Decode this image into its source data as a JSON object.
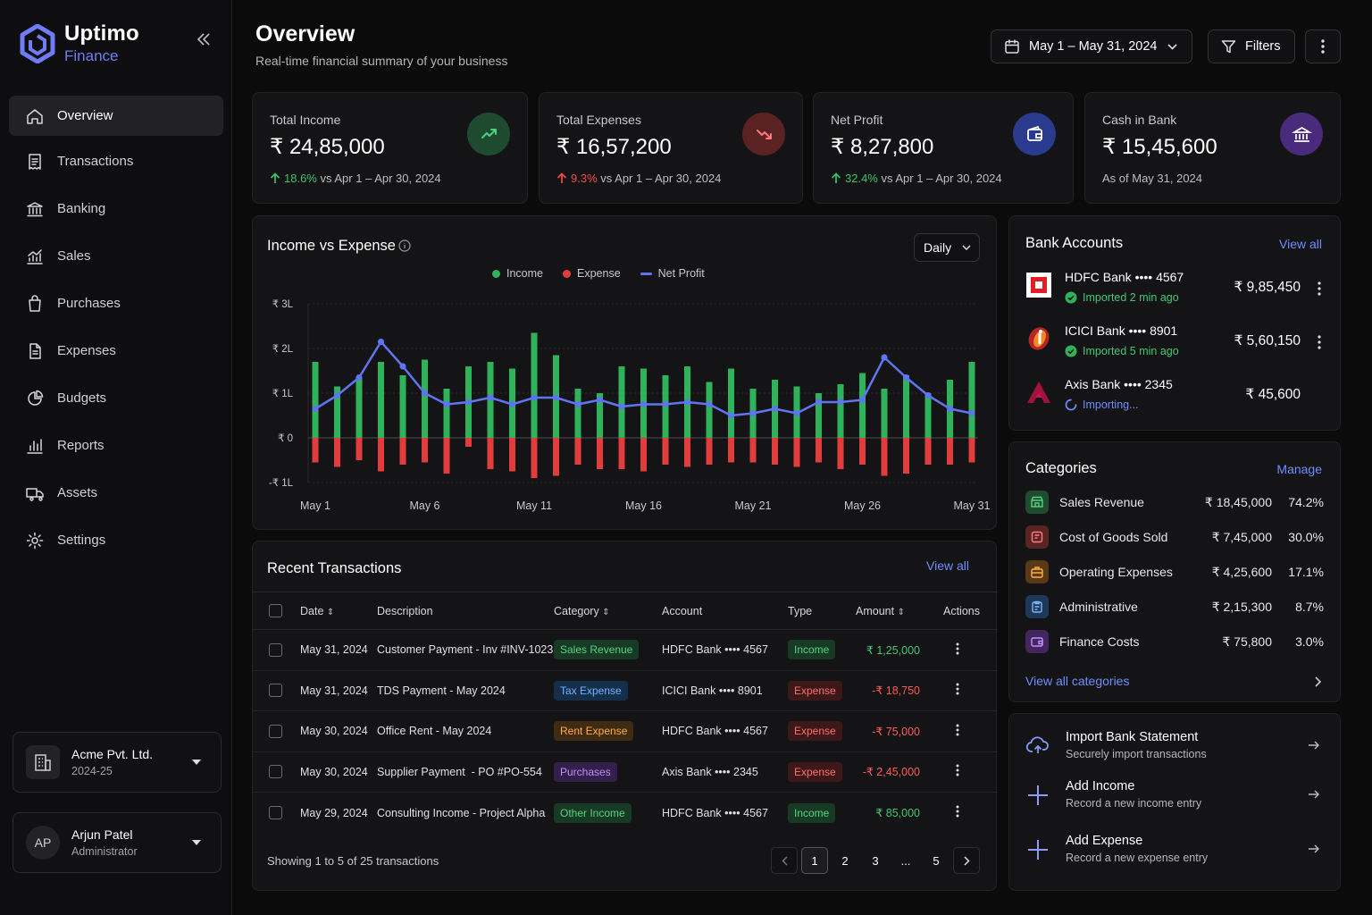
{
  "brand": {
    "name": "Uptimo",
    "sub": "Finance"
  },
  "nav": [
    {
      "label": "Overview",
      "icon": "home-icon",
      "active": true
    },
    {
      "label": "Transactions",
      "icon": "receipt-icon"
    },
    {
      "label": "Banking",
      "icon": "bank-icon"
    },
    {
      "label": "Sales",
      "icon": "sales-chart-icon"
    },
    {
      "label": "Purchases",
      "icon": "purchases-bag-icon"
    },
    {
      "label": "Expenses",
      "icon": "expenses-doc-icon"
    },
    {
      "label": "Budgets",
      "icon": "pie-icon"
    },
    {
      "label": "Reports",
      "icon": "bar-chart-icon"
    },
    {
      "label": "Assets",
      "icon": "truck-icon"
    },
    {
      "label": "Settings",
      "icon": "gear-icon"
    }
  ],
  "org": {
    "name": "Acme Pvt. Ltd.",
    "year": "2024-25"
  },
  "user": {
    "initials": "AP",
    "name": "Arjun Patel",
    "role": "Administrator"
  },
  "header": {
    "title": "Overview",
    "subtitle": "Real-time financial summary of your business",
    "date_range": "May 1 – May 31, 2024",
    "filters": "Filters"
  },
  "kpis": [
    {
      "label": "Total Income",
      "value": "₹ 24,85,000",
      "delta": "18.6%",
      "delta_suffix": " vs Apr 1 – Apr 30, 2024",
      "trend": "up",
      "color": "#1e4a30",
      "icon_color": "#4ed07e"
    },
    {
      "label": "Total Expenses",
      "value": "₹ 16,57,200",
      "delta": "9.3%",
      "delta_suffix": " vs Apr 1 – Apr 30, 2024",
      "trend": "down",
      "color": "#5a2222",
      "icon_color": "#ff7a7a"
    },
    {
      "label": "Net Profit",
      "value": "₹ 8,27,800",
      "delta": "32.4%",
      "delta_suffix": " vs Apr 1 – Apr 30, 2024",
      "trend": "up",
      "color": "#2a3a8c",
      "icon_color": "#ffffff"
    },
    {
      "label": "Cash in Bank",
      "value": "₹ 15,45,600",
      "delta": "",
      "delta_suffix": "As of May 31, 2024",
      "trend": "none",
      "color": "#4a2a7a",
      "icon_color": "#ffffff"
    }
  ],
  "chart": {
    "title": "Income vs Expense",
    "period": "Daily",
    "legend": [
      "Income",
      "Expense",
      "Net Profit"
    ],
    "colors": {
      "income": "#2fb35a",
      "expense": "#e23c3c",
      "net": "#5f74ef"
    }
  },
  "chart_data": {
    "type": "bar",
    "categories": [
      "May 1",
      "May 2",
      "May 3",
      "May 4",
      "May 5",
      "May 6",
      "May 7",
      "May 8",
      "May 9",
      "May 10",
      "May 11",
      "May 12",
      "May 13",
      "May 14",
      "May 15",
      "May 16",
      "May 17",
      "May 18",
      "May 19",
      "May 20",
      "May 21",
      "May 22",
      "May 23",
      "May 24",
      "May 25",
      "May 26",
      "May 27",
      "May 28",
      "May 29",
      "May 30",
      "May 31"
    ],
    "x_tick_labels": [
      "May 1",
      "May 6",
      "May 11",
      "May 16",
      "May 21",
      "May 26",
      "May 31"
    ],
    "series": [
      {
        "name": "Income",
        "type": "bar",
        "values": [
          1.7,
          1.15,
          1.35,
          1.7,
          1.4,
          1.75,
          1.1,
          1.6,
          1.7,
          1.55,
          2.35,
          1.85,
          1.1,
          1.0,
          1.6,
          1.55,
          1.4,
          1.6,
          1.25,
          1.55,
          1.1,
          1.3,
          1.15,
          1.0,
          1.2,
          1.45,
          1.1,
          1.4,
          1.0,
          1.3,
          1.7
        ]
      },
      {
        "name": "Expense",
        "type": "bar",
        "values": [
          -0.55,
          -0.65,
          -0.5,
          -0.75,
          -0.6,
          -0.55,
          -0.8,
          -0.2,
          -0.7,
          -0.75,
          -0.9,
          -0.85,
          -0.6,
          -0.7,
          -0.7,
          -0.75,
          -0.6,
          -0.65,
          -0.6,
          -0.55,
          -0.55,
          -0.6,
          -0.65,
          -0.55,
          -0.7,
          -0.6,
          -0.85,
          -0.8,
          -0.6,
          -0.6,
          -0.55
        ]
      },
      {
        "name": "Net Profit",
        "type": "line",
        "values": [
          0.65,
          0.95,
          1.35,
          2.15,
          1.6,
          1.0,
          0.75,
          0.8,
          0.9,
          0.75,
          0.9,
          0.9,
          0.75,
          0.85,
          0.7,
          0.75,
          0.75,
          0.8,
          0.75,
          0.5,
          0.55,
          0.65,
          0.55,
          0.8,
          0.8,
          0.85,
          1.8,
          1.35,
          0.95,
          0.65,
          0.55
        ]
      }
    ],
    "y_ticks": [
      "₹ 3L",
      "₹ 2L",
      "₹ 1L",
      "₹ 0",
      "-₹ 1L"
    ],
    "ylim": [
      -1,
      3
    ],
    "y_unit": "lakh ₹",
    "grid": true,
    "legend_position": "top-center"
  },
  "banks": {
    "title": "Bank Accounts",
    "view_all": "View all",
    "items": [
      {
        "name": "HDFC Bank •••• 4567",
        "status": "Imported 2 min ago",
        "state": "done",
        "amount": "₹ 9,85,450",
        "logo": "hdfc-logo"
      },
      {
        "name": "ICICI Bank •••• 8901",
        "status": "Imported 5 min ago",
        "state": "done",
        "amount": "₹ 5,60,150",
        "logo": "icici-logo"
      },
      {
        "name": "Axis Bank •••• 2345",
        "status": "Importing...",
        "state": "loading",
        "amount": "₹ 45,600",
        "logo": "axis-logo"
      }
    ]
  },
  "categories": {
    "title": "Categories",
    "manage": "Manage",
    "view_all": "View all categories",
    "items": [
      {
        "name": "Sales Revenue",
        "amount": "₹ 18,45,000",
        "pct": "74.2%",
        "color": "#1f4b2e",
        "icon_color": "#55d07f",
        "icon": "store-icon"
      },
      {
        "name": "Cost of Goods Sold",
        "amount": "₹ 7,45,000",
        "pct": "30.0%",
        "color": "#5a2424",
        "icon_color": "#ff8080",
        "icon": "tag-icon"
      },
      {
        "name": "Operating Expenses",
        "amount": "₹ 4,25,600",
        "pct": "17.1%",
        "color": "#5a3a16",
        "icon_color": "#ffb04a",
        "icon": "briefcase-icon"
      },
      {
        "name": "Administrative",
        "amount": "₹ 2,15,300",
        "pct": "8.7%",
        "color": "#1e3858",
        "icon_color": "#7fb4ff",
        "icon": "clipboard-icon"
      },
      {
        "name": "Finance Costs",
        "amount": "₹ 75,800",
        "pct": "3.0%",
        "color": "#43265e",
        "icon_color": "#c490ff",
        "icon": "wallet-icon"
      }
    ]
  },
  "transactions": {
    "title": "Recent Transactions",
    "view_all": "View all",
    "columns": [
      "Date",
      "Description",
      "Category",
      "Account",
      "Type",
      "Amount",
      "Actions"
    ],
    "rows": [
      {
        "date": "May 31, 2024",
        "desc": "Customer Payment - Inv #INV-1023",
        "category": "Sales Revenue",
        "cat_bg": "#173a24",
        "cat_fg": "#56d27f",
        "account": "HDFC Bank •••• 4567",
        "type": "Income",
        "amount": "₹ 1,25,000"
      },
      {
        "date": "May 31, 2024",
        "desc": "TDS Payment - May 2024",
        "category": "Tax Expense",
        "cat_bg": "#152f4a",
        "cat_fg": "#6fb3ff",
        "account": "ICICI Bank •••• 8901",
        "type": "Expense",
        "amount": "-₹ 18,750"
      },
      {
        "date": "May 30, 2024",
        "desc": "Office Rent - May 2024",
        "category": "Rent Expense",
        "cat_bg": "#3f2a12",
        "cat_fg": "#ffae4a",
        "account": "HDFC Bank •••• 4567",
        "type": "Expense",
        "amount": "-₹ 75,000"
      },
      {
        "date": "May 30, 2024",
        "desc": "Supplier Payment  - PO #PO-554",
        "category": "Purchases",
        "cat_bg": "#33204a",
        "cat_fg": "#c28cff",
        "account": "Axis Bank •••• 2345",
        "type": "Expense",
        "amount": "-₹ 2,45,000"
      },
      {
        "date": "May 29, 2024",
        "desc": "Consulting Income - Project Alpha",
        "category": "Other Income",
        "cat_bg": "#173a24",
        "cat_fg": "#56d27f",
        "account": "HDFC Bank •••• 4567",
        "type": "Income",
        "amount": "₹ 85,000"
      }
    ],
    "showing": "Showing 1 to 5 of 25 transactions",
    "pages": [
      "1",
      "2",
      "3",
      "...",
      "5"
    ]
  },
  "quick_actions": [
    {
      "title": "Import Bank Statement",
      "sub": "Securely import transactions",
      "icon": "cloud-upload-icon"
    },
    {
      "title": "Add Income",
      "sub": "Record a new income entry",
      "icon": "plus-icon"
    },
    {
      "title": "Add Expense",
      "sub": "Record a new expense entry",
      "icon": "plus-icon"
    }
  ]
}
